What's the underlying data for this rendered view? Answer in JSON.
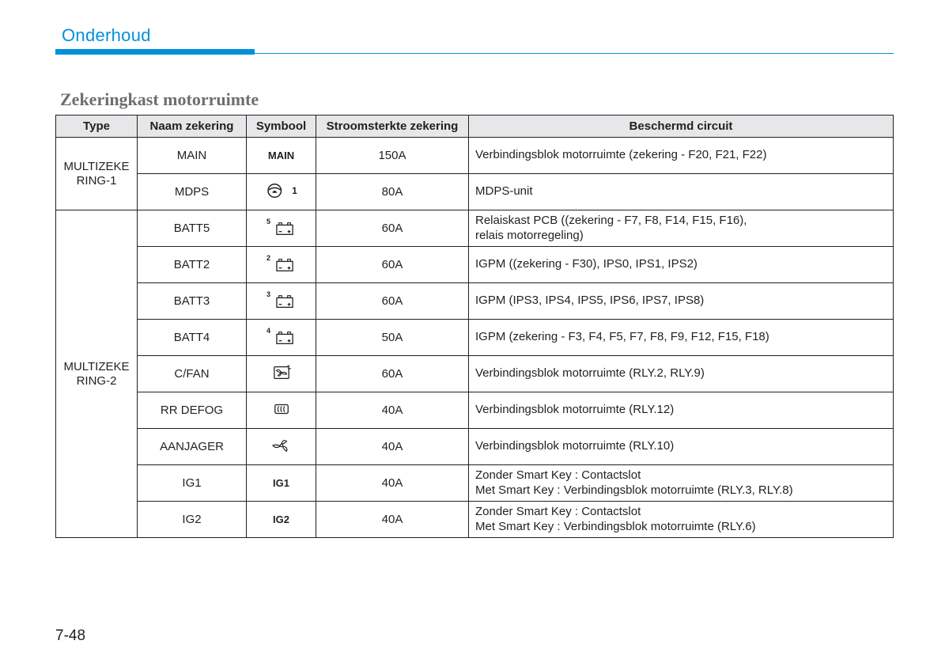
{
  "colors": {
    "accent": "#0091da",
    "header_bg": "#e6e7e8",
    "text": "#231f20",
    "section_title": "#6d6e71",
    "border": "#231f20"
  },
  "chapter_title": "Onderhoud",
  "section_title": "Zekeringkast motorruimte",
  "page_number": "7-48",
  "table": {
    "columns": {
      "type": "Type",
      "name": "Naam zekering",
      "symbol": "Symbool",
      "amp": "Stroomsterkte zekering",
      "desc": "Beschermd circuit"
    },
    "groups": [
      {
        "type_label": "MULTIZEKE RING-1",
        "rows": [
          {
            "name": "MAIN",
            "symbol_kind": "text",
            "symbol_text": "MAIN",
            "amp": "150A",
            "desc": "Verbindingsblok motorruimte (zekering - F20, F21, F22)"
          },
          {
            "name": "MDPS",
            "symbol_kind": "steer",
            "symbol_sup": "1",
            "amp": "80A",
            "desc": "MDPS-unit"
          }
        ]
      },
      {
        "type_label": "MULTIZEKE RING-2",
        "rows": [
          {
            "name": "BATT5",
            "symbol_kind": "batt",
            "symbol_sup": "5",
            "amp": "60A",
            "desc": "Relaiskast PCB ((zekering - F7, F8, F14, F15, F16),\nrelais motorregeling)"
          },
          {
            "name": "BATT2",
            "symbol_kind": "batt",
            "symbol_sup": "2",
            "amp": "60A",
            "desc": "IGPM ((zekering - F30), IPS0, IPS1, IPS2)"
          },
          {
            "name": "BATT3",
            "symbol_kind": "batt",
            "symbol_sup": "3",
            "amp": "60A",
            "desc": "IGPM (IPS3, IPS4, IPS5, IPS6, IPS7, IPS8)"
          },
          {
            "name": "BATT4",
            "symbol_kind": "batt",
            "symbol_sup": "4",
            "amp": "50A",
            "desc": "IGPM (zekering - F3, F4, F5, F7, F8, F9, F12, F15, F18)"
          },
          {
            "name": "C/FAN",
            "symbol_kind": "cfan",
            "amp": "60A",
            "desc": "Verbindingsblok motorruimte (RLY.2, RLY.9)"
          },
          {
            "name": "RR DEFOG",
            "symbol_kind": "defog",
            "amp": "40A",
            "desc": "Verbindingsblok motorruimte (RLY.12)"
          },
          {
            "name": "AANJAGER",
            "symbol_kind": "blower",
            "amp": "40A",
            "desc": "Verbindingsblok motorruimte (RLY.10)"
          },
          {
            "name": "IG1",
            "symbol_kind": "text",
            "symbol_text": "IG1",
            "amp": "40A",
            "desc": "Zonder Smart Key : Contactslot\nMet Smart Key : Verbindingsblok motorruimte (RLY.3, RLY.8)"
          },
          {
            "name": "IG2",
            "symbol_kind": "text",
            "symbol_text": "IG2",
            "amp": "40A",
            "desc": "Zonder Smart Key : Contactslot\nMet Smart Key : Verbindingsblok motorruimte (RLY.6)"
          }
        ]
      }
    ]
  }
}
